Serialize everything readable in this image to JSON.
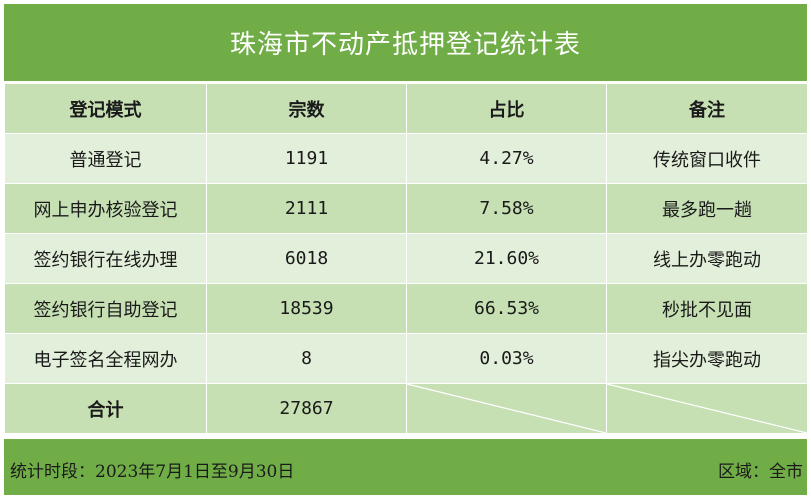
{
  "title": "珠海市不动产抵押登记统计表",
  "headers": [
    "登记模式",
    "宗数",
    "占比",
    "备注"
  ],
  "rows": [
    {
      "mode": "普通登记",
      "count": "1191",
      "ratio": "4.27%",
      "note": "传统窗口收件"
    },
    {
      "mode": "网上申办核验登记",
      "count": "2111",
      "ratio": "7.58%",
      "note": "最多跑一趟"
    },
    {
      "mode": "签约银行在线办理",
      "count": "6018",
      "ratio": "21.60%",
      "note": "线上办零跑动"
    },
    {
      "mode": "签约银行自助登记",
      "count": "18539",
      "ratio": "66.53%",
      "note": "秒批不见面"
    },
    {
      "mode": "电子签名全程网办",
      "count": "8",
      "ratio": "0.03%",
      "note": "指尖办零跑动"
    }
  ],
  "total": {
    "label": "合计",
    "count": "27867"
  },
  "footer": {
    "period": "统计时段：2023年7月1日至9月30日",
    "region": "区域：全市"
  },
  "colors": {
    "header_green": "#70ad47",
    "row_light": "#e2efda",
    "row_mid": "#c6e0b4"
  }
}
